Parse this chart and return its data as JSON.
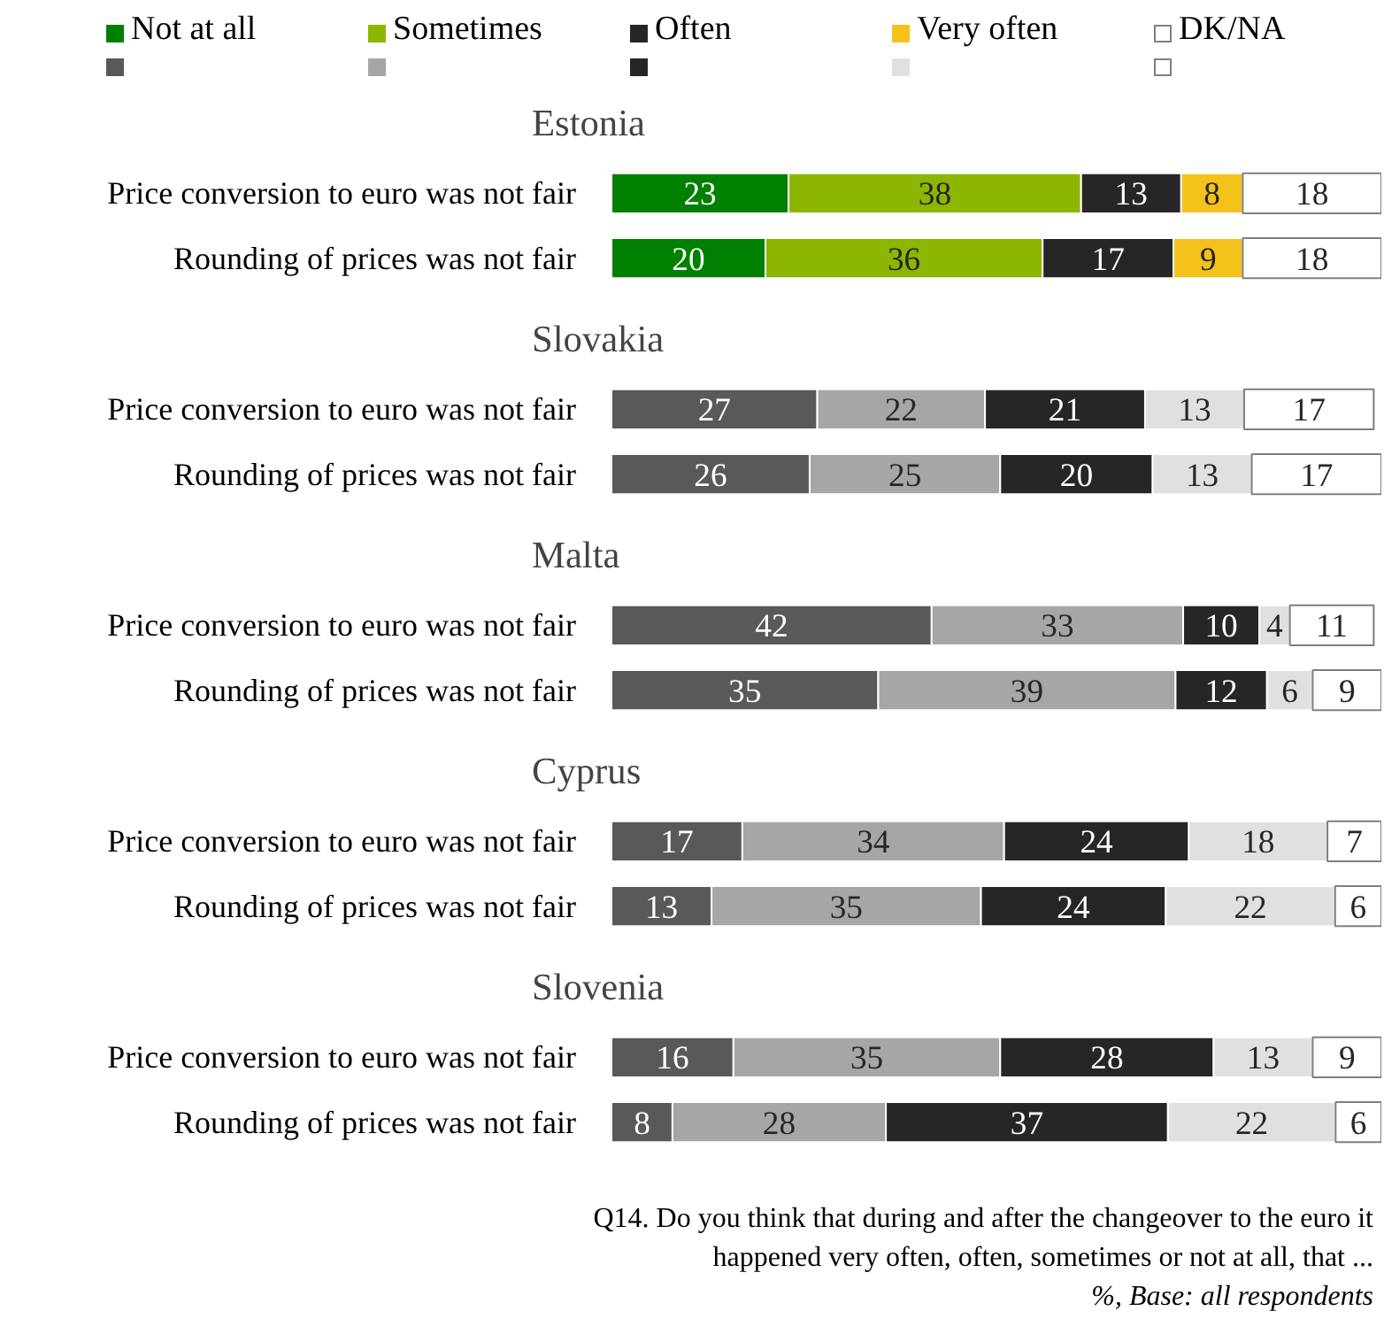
{
  "chart_data": [
    {
      "type": "bar",
      "orientation": "horizontal",
      "stacked": true,
      "data_labels": true,
      "legend": "top left",
      "grid": false,
      "title": "Estonia",
      "categories": [
        "Price conversion to euro was not fair",
        "Rounding of prices was not fair"
      ],
      "series": [
        {
          "name": "Not at all",
          "color": "#008000",
          "values": [
            23,
            20
          ]
        },
        {
          "name": "Sometimes",
          "color": "#8db600",
          "values": [
            38,
            36
          ]
        },
        {
          "name": "Often",
          "color": "#262626",
          "values": [
            13,
            17
          ]
        },
        {
          "name": "Very often",
          "color": "#f5c21b",
          "values": [
            8,
            9
          ]
        },
        {
          "name": "DK/NA",
          "color": "#ffffff",
          "values": [
            18,
            18
          ]
        }
      ]
    },
    {
      "type": "bar",
      "orientation": "horizontal",
      "stacked": true,
      "data_labels": true,
      "grid": false,
      "title": "Slovakia",
      "categories": [
        "Price conversion to euro was not fair",
        "Rounding of prices was not fair"
      ],
      "series": [
        {
          "color": "#595959",
          "values": [
            27,
            26
          ]
        },
        {
          "color": "#a6a6a6",
          "values": [
            22,
            25
          ]
        },
        {
          "color": "#262626",
          "values": [
            21,
            20
          ]
        },
        {
          "color": "#e0e0e0",
          "values": [
            13,
            13
          ]
        },
        {
          "color": "#ffffff",
          "values": [
            17,
            17
          ]
        }
      ]
    },
    {
      "type": "bar",
      "orientation": "horizontal",
      "stacked": true,
      "data_labels": true,
      "grid": false,
      "title": "Malta",
      "categories": [
        "Price conversion to euro was not fair",
        "Rounding of prices was not fair"
      ],
      "series": [
        {
          "color": "#595959",
          "values": [
            42,
            35
          ]
        },
        {
          "color": "#a6a6a6",
          "values": [
            33,
            39
          ]
        },
        {
          "color": "#262626",
          "values": [
            10,
            12
          ]
        },
        {
          "color": "#e0e0e0",
          "values": [
            4,
            6
          ]
        },
        {
          "color": "#ffffff",
          "values": [
            11,
            9
          ]
        }
      ]
    },
    {
      "type": "bar",
      "orientation": "horizontal",
      "stacked": true,
      "data_labels": true,
      "grid": false,
      "title": "Cyprus",
      "categories": [
        "Price conversion to euro was not fair",
        "Rounding of prices was not fair"
      ],
      "series": [
        {
          "color": "#595959",
          "values": [
            17,
            13
          ]
        },
        {
          "color": "#a6a6a6",
          "values": [
            34,
            35
          ]
        },
        {
          "color": "#262626",
          "values": [
            24,
            24
          ]
        },
        {
          "color": "#e0e0e0",
          "values": [
            18,
            22
          ]
        },
        {
          "color": "#ffffff",
          "values": [
            7,
            6
          ]
        }
      ]
    },
    {
      "type": "bar",
      "orientation": "horizontal",
      "stacked": true,
      "data_labels": true,
      "grid": false,
      "title": "Slovenia",
      "categories": [
        "Price conversion to euro was not fair",
        "Rounding of prices was not fair"
      ],
      "series": [
        {
          "color": "#595959",
          "values": [
            16,
            8
          ]
        },
        {
          "color": "#a6a6a6",
          "values": [
            35,
            28
          ]
        },
        {
          "color": "#262626",
          "values": [
            28,
            37
          ]
        },
        {
          "color": "#e0e0e0",
          "values": [
            13,
            22
          ]
        },
        {
          "color": "#ffffff",
          "values": [
            9,
            6
          ]
        }
      ],
      "annotations": [
        "Q14. Do you think that during and after the changeover to the euro it",
        "happened very often, often, sometimes or not at all, that ...",
        "%, Base: all respondents"
      ]
    }
  ]
}
